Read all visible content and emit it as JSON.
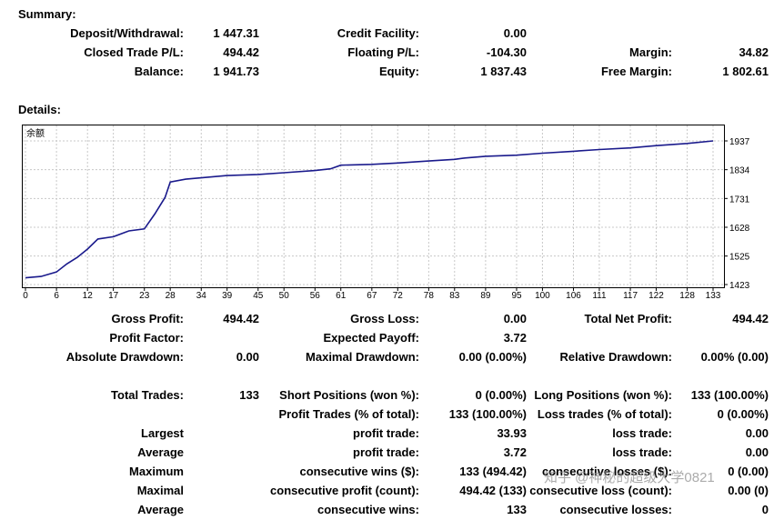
{
  "summary": {
    "title": "Summary:",
    "deposit_withdrawal": {
      "label": "Deposit/Withdrawal:",
      "value": "1 447.31"
    },
    "credit_facility": {
      "label": "Credit Facility:",
      "value": "0.00"
    },
    "closed_trade_pl": {
      "label": "Closed Trade P/L:",
      "value": "494.42"
    },
    "floating_pl": {
      "label": "Floating P/L:",
      "value": "-104.30"
    },
    "margin": {
      "label": "Margin:",
      "value": "34.82"
    },
    "balance": {
      "label": "Balance:",
      "value": "1 941.73"
    },
    "equity": {
      "label": "Equity:",
      "value": "1 837.43"
    },
    "free_margin": {
      "label": "Free Margin:",
      "value": "1 802.61"
    }
  },
  "details": {
    "title": "Details:",
    "gross_profit": {
      "label": "Gross Profit:",
      "value": "494.42"
    },
    "gross_loss": {
      "label": "Gross Loss:",
      "value": "0.00"
    },
    "total_net_profit": {
      "label": "Total Net Profit:",
      "value": "494.42"
    },
    "profit_factor": {
      "label": "Profit Factor:",
      "value": ""
    },
    "expected_payoff": {
      "label": "Expected Payoff:",
      "value": "3.72"
    },
    "absolute_drawdown": {
      "label": "Absolute Drawdown:",
      "value": "0.00"
    },
    "maximal_drawdown": {
      "label": "Maximal Drawdown:",
      "value": "0.00 (0.00%)"
    },
    "relative_drawdown": {
      "label": "Relative Drawdown:",
      "value": "0.00% (0.00)"
    },
    "total_trades": {
      "label": "Total Trades:",
      "value": "133"
    },
    "short_positions": {
      "label": "Short Positions (won %):",
      "value": "0 (0.00%)"
    },
    "long_positions": {
      "label": "Long Positions (won %):",
      "value": "133 (100.00%)"
    },
    "profit_trades": {
      "label": "Profit Trades (% of total):",
      "value": "133 (100.00%)"
    },
    "loss_trades": {
      "label": "Loss trades (% of total):",
      "value": "0 (0.00%)"
    },
    "largest": {
      "label": "Largest",
      "profit_label": "profit trade:",
      "profit_value": "33.93",
      "loss_label": "loss trade:",
      "loss_value": "0.00"
    },
    "average": {
      "label": "Average",
      "profit_label": "profit trade:",
      "profit_value": "3.72",
      "loss_label": "loss trade:",
      "loss_value": "0.00"
    },
    "maximum": {
      "label": "Maximum",
      "wins_label": "consecutive wins ($):",
      "wins_value": "133 (494.42)",
      "losses_label": "consecutive losses ($):",
      "losses_value": "0 (0.00)"
    },
    "maximal": {
      "label": "Maximal",
      "profit_label": "consecutive profit (count):",
      "profit_value": "494.42 (133)",
      "loss_label": "consecutive loss (count):",
      "loss_value": "0.00 (0)"
    },
    "average_consec": {
      "label": "Average",
      "wins_label": "consecutive wins:",
      "wins_value": "133",
      "losses_label": "consecutive losses:",
      "losses_value": "0"
    }
  },
  "watermark": "知乎 @神秘的超级大学0821",
  "colors": {
    "line": "#1a1a8c",
    "grid": "#c8c8c8",
    "frame": "#000000"
  },
  "chart_data": {
    "type": "line",
    "title": "余额",
    "series": [
      {
        "name": "余额",
        "x": [
          0,
          3,
          6,
          8,
          10,
          12,
          14,
          17,
          20,
          23,
          25,
          27,
          28,
          31,
          34,
          39,
          45,
          50,
          56,
          59,
          61,
          67,
          72,
          78,
          83,
          85,
          89,
          95,
          100,
          106,
          111,
          117,
          122,
          128,
          133
        ],
        "y": [
          1447,
          1452,
          1468,
          1497,
          1520,
          1550,
          1586,
          1594,
          1615,
          1622,
          1675,
          1735,
          1790,
          1800,
          1805,
          1813,
          1817,
          1823,
          1831,
          1837,
          1850,
          1853,
          1858,
          1865,
          1871,
          1876,
          1882,
          1886,
          1893,
          1900,
          1906,
          1912,
          1920,
          1928,
          1937
        ]
      }
    ],
    "x_ticks": [
      0,
      6,
      12,
      17,
      23,
      28,
      34,
      39,
      45,
      50,
      56,
      61,
      67,
      72,
      78,
      83,
      89,
      95,
      100,
      106,
      111,
      117,
      122,
      128,
      133
    ],
    "y_ticks": [
      1423,
      1525,
      1628,
      1731,
      1834,
      1937
    ],
    "xlim": [
      0,
      133
    ],
    "ylim": [
      1423,
      1937
    ],
    "grid": true
  }
}
